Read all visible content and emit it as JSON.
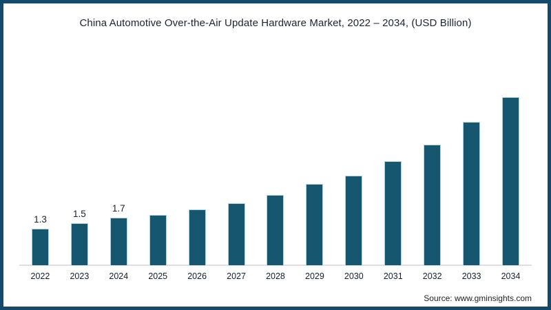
{
  "source": "Source: www.gminsights.com",
  "colors": {
    "frame_border": "#14496b",
    "bar_fill": "#16566e",
    "bar_edge": "#a9d6e5",
    "axis_line": "#dedede"
  },
  "chart_data": {
    "type": "bar",
    "title": "China Automotive Over-the-Air Update Hardware Market, 2022 – 2034, (USD Billion)",
    "categories": [
      "2022",
      "2023",
      "2024",
      "2025",
      "2026",
      "2027",
      "2028",
      "2029",
      "2030",
      "2031",
      "2032",
      "2033",
      "2034"
    ],
    "values": [
      1.3,
      1.5,
      1.7,
      1.8,
      2.0,
      2.2,
      2.5,
      2.9,
      3.2,
      3.7,
      4.3,
      5.1,
      6.0
    ],
    "data_labels": [
      "1.3",
      "1.5",
      "1.7",
      "",
      "",
      "",
      "",
      "",
      "",
      "",
      "",
      "",
      ""
    ],
    "xlabel": "",
    "ylabel": "",
    "ylim": [
      0,
      7
    ],
    "grid": false,
    "legend": "none",
    "bar_color": "#16566e"
  }
}
